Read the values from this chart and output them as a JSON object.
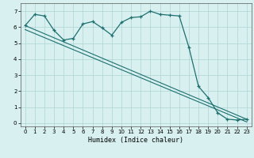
{
  "background_color": "#d8f0f0",
  "grid_color": "#aed4d4",
  "line_color": "#1e7070",
  "marker": "+",
  "xlabel": "Humidex (Indice chaleur)",
  "ylim": [
    -0.2,
    7.5
  ],
  "xlim": [
    -0.5,
    23.5
  ],
  "yticks": [
    0,
    1,
    2,
    3,
    4,
    5,
    6,
    7
  ],
  "xticks": [
    0,
    1,
    2,
    3,
    4,
    5,
    6,
    7,
    8,
    9,
    10,
    11,
    12,
    13,
    14,
    15,
    16,
    17,
    18,
    19,
    20,
    21,
    22,
    23
  ],
  "series1_x": [
    0,
    1,
    2,
    3,
    4,
    5,
    6,
    7,
    8,
    9,
    10,
    11,
    12,
    13,
    14,
    15,
    16,
    17,
    18,
    19,
    20,
    21,
    22,
    23
  ],
  "series1_y": [
    6.1,
    6.8,
    6.7,
    5.8,
    5.2,
    5.3,
    6.2,
    6.35,
    5.95,
    5.5,
    6.3,
    6.6,
    6.65,
    7.0,
    6.8,
    6.75,
    6.7,
    4.75,
    2.3,
    1.6,
    0.65,
    0.25,
    0.2,
    0.25
  ],
  "series2_x": [
    0,
    23
  ],
  "series2_y": [
    6.1,
    0.25
  ],
  "series3_x": [
    0,
    23
  ],
  "series3_y": [
    5.85,
    0.08
  ]
}
